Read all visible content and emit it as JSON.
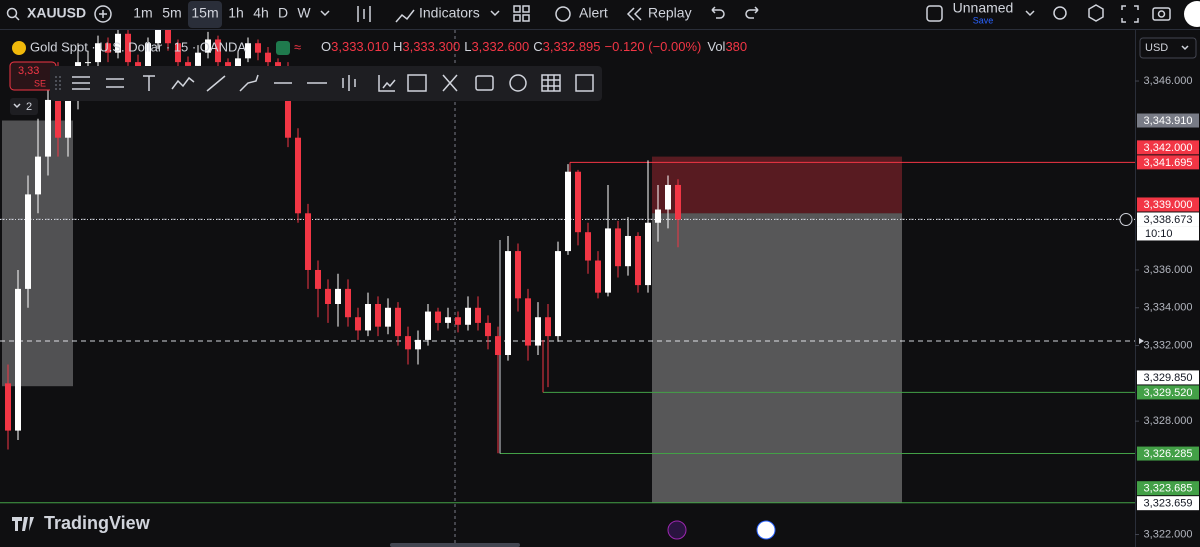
{
  "toolbar": {
    "symbol": "XAUUSD",
    "intervals": [
      "1m",
      "5m",
      "15m",
      "1h",
      "4h",
      "D",
      "W"
    ],
    "indicators": "Indicators",
    "alert": "Alert",
    "replay": "Replay",
    "layout_name": "Unnamed",
    "save": "Save"
  },
  "legend": {
    "title": "Gold Spot · U.S. Dollar · 15 · OANDA",
    "open_key": "O",
    "open": "3,333.010",
    "high_key": "H",
    "high": "3,333.300",
    "low_key": "L",
    "low": "3,332.600",
    "close_key": "C",
    "close": "3,332.895",
    "change": "−0.120 (−0.00%)",
    "volume_key": "Vol",
    "volume": "380"
  },
  "order_badge": {
    "price": "3,33",
    "side": "SE"
  },
  "indicator_count": "2",
  "currency": "USD",
  "logo": "TradingView",
  "chart_data": {
    "type": "candlestick",
    "up_color": "#ffffff",
    "down_color": "#f23645",
    "ylim": [
      3321.34,
      3348.7
    ],
    "yticks": [
      {
        "value": 3346,
        "label": "3,346.000"
      },
      {
        "value": 3336,
        "label": "3,336.000"
      },
      {
        "value": 3334,
        "label": "3,334.000"
      },
      {
        "value": 3332,
        "label": "3,332.000"
      },
      {
        "value": 3328,
        "label": "3,328.000"
      },
      {
        "value": 3322,
        "label": "3,322.000"
      }
    ],
    "price_labels": [
      {
        "value": 3343.91,
        "label": "3,343.910",
        "color": "#787b86"
      },
      {
        "value": 3342,
        "label": "3,342.000",
        "color": "#f23645"
      },
      {
        "value": 3341.695,
        "label": "3,341.695",
        "color": "#f23645"
      },
      {
        "value": 3339,
        "label": "3,339.000",
        "color": "#f23645"
      },
      {
        "value": 3338.673,
        "label": "3,338.673",
        "color": "#ffffff"
      },
      {
        "value": 3329.85,
        "label": "3,329.850",
        "color": "#ffffff"
      },
      {
        "value": 3329.52,
        "label": "3,329.520",
        "color": "#43a047"
      },
      {
        "value": 3326.285,
        "label": "3,326.285",
        "color": "#43a047"
      },
      {
        "value": 3323.685,
        "label": "3,323.685",
        "color": "#43a047"
      },
      {
        "value": 3323.659,
        "label": "3,323.659",
        "color": "#ffffff"
      }
    ],
    "countdown": "10:10",
    "candles": [
      {
        "o": 3330,
        "h": 3331,
        "l": 3326.5,
        "c": 3327.5
      },
      {
        "o": 3327.5,
        "h": 3336,
        "l": 3327,
        "c": 3335
      },
      {
        "o": 3335,
        "h": 3341,
        "l": 3334,
        "c": 3340
      },
      {
        "o": 3340,
        "h": 3344,
        "l": 3339,
        "c": 3342
      },
      {
        "o": 3342,
        "h": 3347,
        "l": 3341,
        "c": 3345
      },
      {
        "o": 3345,
        "h": 3347,
        "l": 3342,
        "c": 3343
      },
      {
        "o": 3343,
        "h": 3346.5,
        "l": 3342,
        "c": 3345
      },
      {
        "o": 3345,
        "h": 3348,
        "l": 3344.5,
        "c": 3347
      },
      {
        "o": 3347,
        "h": 3347.6,
        "l": 3346.2,
        "c": 3347
      },
      {
        "o": 3347,
        "h": 3348.4,
        "l": 3346.6,
        "c": 3348
      },
      {
        "o": 3348,
        "h": 3348.3,
        "l": 3347,
        "c": 3347.5
      },
      {
        "o": 3347.5,
        "h": 3349,
        "l": 3347.2,
        "c": 3348.5
      },
      {
        "o": 3348.5,
        "h": 3348.8,
        "l": 3346.8,
        "c": 3347
      },
      {
        "o": 3347,
        "h": 3347.4,
        "l": 3346,
        "c": 3346.5
      },
      {
        "o": 3346.5,
        "h": 3348.3,
        "l": 3346.2,
        "c": 3348
      },
      {
        "o": 3348,
        "h": 3349.5,
        "l": 3347.7,
        "c": 3349
      },
      {
        "o": 3349,
        "h": 3349.3,
        "l": 3347.6,
        "c": 3348
      },
      {
        "o": 3348,
        "h": 3348.2,
        "l": 3346.6,
        "c": 3347
      },
      {
        "o": 3347,
        "h": 3347.3,
        "l": 3346.1,
        "c": 3346.8
      },
      {
        "o": 3346.8,
        "h": 3347.9,
        "l": 3346.5,
        "c": 3347.5
      },
      {
        "o": 3347.5,
        "h": 3348.6,
        "l": 3347.2,
        "c": 3348.2
      },
      {
        "o": 3348.2,
        "h": 3348.4,
        "l": 3346.7,
        "c": 3347
      },
      {
        "o": 3347,
        "h": 3347.2,
        "l": 3345.9,
        "c": 3346.5
      },
      {
        "o": 3346.5,
        "h": 3347.6,
        "l": 3346.2,
        "c": 3347.2
      },
      {
        "o": 3347.2,
        "h": 3348.3,
        "l": 3347,
        "c": 3348
      },
      {
        "o": 3348,
        "h": 3348.2,
        "l": 3347.1,
        "c": 3347.5
      },
      {
        "o": 3347.5,
        "h": 3347.8,
        "l": 3346.6,
        "c": 3347
      },
      {
        "o": 3347,
        "h": 3347.2,
        "l": 3346.1,
        "c": 3346.5
      },
      {
        "o": 3346.5,
        "h": 3347,
        "l": 3342.5,
        "c": 3343
      },
      {
        "o": 3343,
        "h": 3343.5,
        "l": 3338.5,
        "c": 3339
      },
      {
        "o": 3339,
        "h": 3339.5,
        "l": 3335,
        "c": 3336
      },
      {
        "o": 3336,
        "h": 3336.5,
        "l": 3333.5,
        "c": 3335
      },
      {
        "o": 3335,
        "h": 3335.5,
        "l": 3333.2,
        "c": 3334.2
      },
      {
        "o": 3334.2,
        "h": 3335.8,
        "l": 3333,
        "c": 3335
      },
      {
        "o": 3335,
        "h": 3335.5,
        "l": 3333,
        "c": 3333.5
      },
      {
        "o": 3333.5,
        "h": 3334,
        "l": 3332.3,
        "c": 3332.8
      },
      {
        "o": 3332.8,
        "h": 3334.8,
        "l": 3332.5,
        "c": 3334.2
      },
      {
        "o": 3334.2,
        "h": 3334.6,
        "l": 3332.5,
        "c": 3333
      },
      {
        "o": 3333,
        "h": 3334.5,
        "l": 3332.6,
        "c": 3334
      },
      {
        "o": 3334,
        "h": 3334.3,
        "l": 3332,
        "c": 3332.5
      },
      {
        "o": 3332.5,
        "h": 3333,
        "l": 3331,
        "c": 3331.8
      },
      {
        "o": 3331.8,
        "h": 3332.8,
        "l": 3331,
        "c": 3332.3
      },
      {
        "o": 3332.3,
        "h": 3334.2,
        "l": 3332,
        "c": 3333.8
      },
      {
        "o": 3333.8,
        "h": 3334,
        "l": 3332.8,
        "c": 3333.2
      },
      {
        "o": 3333.2,
        "h": 3334,
        "l": 3332.9,
        "c": 3333.5
      },
      {
        "o": 3333.5,
        "h": 3333.8,
        "l": 3332.7,
        "c": 3333.1
      },
      {
        "o": 3333.1,
        "h": 3334.6,
        "l": 3332.8,
        "c": 3334
      },
      {
        "o": 3334,
        "h": 3334.6,
        "l": 3332.8,
        "c": 3333.2
      },
      {
        "o": 3333.2,
        "h": 3333.6,
        "l": 3331.8,
        "c": 3332.5
      },
      {
        "o": 3332.5,
        "h": 3333,
        "l": 3326.3,
        "c": 3331.5
      },
      {
        "o": 3331.5,
        "h": 3337.8,
        "l": 3331.2,
        "c": 3337
      },
      {
        "o": 3337,
        "h": 3337.4,
        "l": 3333.8,
        "c": 3334.5
      },
      {
        "o": 3334.5,
        "h": 3335,
        "l": 3331.2,
        "c": 3332
      },
      {
        "o": 3332,
        "h": 3334.3,
        "l": 3331.5,
        "c": 3333.5
      },
      {
        "o": 3333.5,
        "h": 3334.2,
        "l": 3329.8,
        "c": 3332.5
      },
      {
        "o": 3332.5,
        "h": 3337.5,
        "l": 3332.2,
        "c": 3337
      },
      {
        "o": 3337,
        "h": 3341.6,
        "l": 3336.8,
        "c": 3341.2
      },
      {
        "o": 3341.2,
        "h": 3341.3,
        "l": 3337.3,
        "c": 3338
      },
      {
        "o": 3338,
        "h": 3338.5,
        "l": 3335.8,
        "c": 3336.5
      },
      {
        "o": 3336.5,
        "h": 3337,
        "l": 3334.5,
        "c": 3334.8
      },
      {
        "o": 3334.8,
        "h": 3340.5,
        "l": 3334.6,
        "c": 3338.2
      },
      {
        "o": 3338.2,
        "h": 3338.6,
        "l": 3335.6,
        "c": 3336.2
      },
      {
        "o": 3336.2,
        "h": 3338.8,
        "l": 3335.7,
        "c": 3337.8
      },
      {
        "o": 3337.8,
        "h": 3338,
        "l": 3334.8,
        "c": 3335.2
      },
      {
        "o": 3335.2,
        "h": 3341.8,
        "l": 3334.8,
        "c": 3338.5
      },
      {
        "o": 3338.5,
        "h": 3340.5,
        "l": 3337.5,
        "c": 3339.2
      },
      {
        "o": 3339.2,
        "h": 3341,
        "l": 3338.2,
        "c": 3340.5
      },
      {
        "o": 3340.5,
        "h": 3340.8,
        "l": 3337.2,
        "c": 3338.673
      }
    ]
  }
}
